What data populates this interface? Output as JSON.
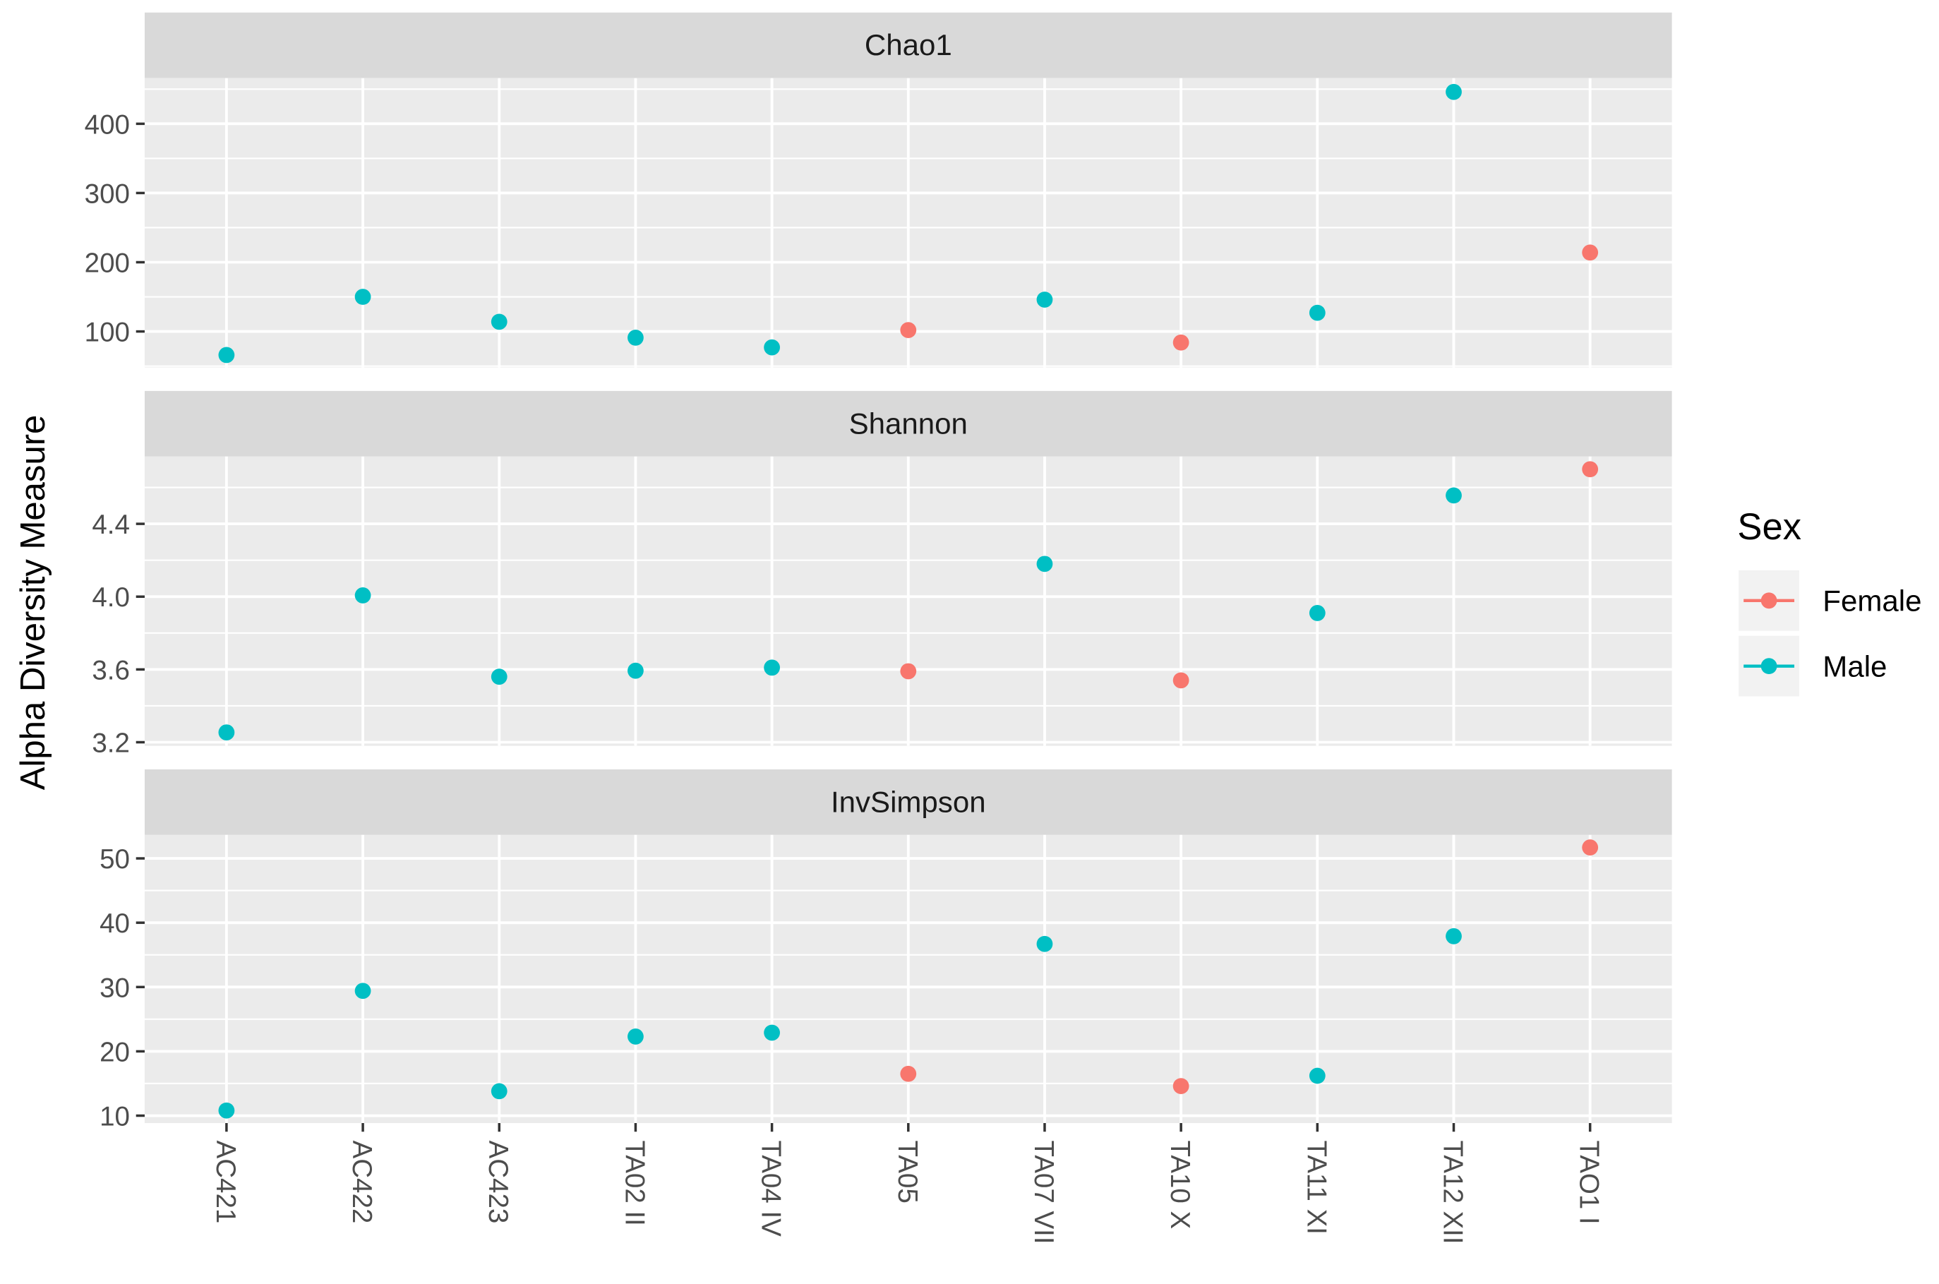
{
  "chart_data": {
    "type": "scatter",
    "ylabel": "Alpha Diversity Measure",
    "categories": [
      "AC421",
      "AC422",
      "AC423",
      "TA02 II",
      "TA04 IV",
      "TA05",
      "TA07 VII",
      "TA10 X",
      "TA11 XI",
      "TA12 XII",
      "TAO1 I"
    ],
    "legend_title": "Sex",
    "series": [
      {
        "name": "Female",
        "color": "#F8766D"
      },
      {
        "name": "Male",
        "color": "#00BFC4"
      }
    ],
    "grid": true,
    "facets": [
      {
        "title": "Chao1",
        "ylim": [
          48,
          466
        ],
        "yticks": [
          100,
          200,
          300,
          400
        ],
        "series": [
          {
            "values": [
              null,
              null,
              null,
              null,
              null,
              102,
              null,
              84,
              null,
              null,
              214
            ]
          },
          {
            "values": [
              66,
              150,
              114,
              91,
              77,
              null,
              146,
              null,
              127,
              446,
              null
            ]
          }
        ]
      },
      {
        "title": "Shannon",
        "ylim": [
          3.18,
          4.77
        ],
        "yticks": [
          3.2,
          3.6,
          {
            "value": 4,
            "label": "4.0"
          },
          4.4
        ],
        "series": [
          {
            "values": [
              null,
              null,
              null,
              null,
              null,
              3.59,
              null,
              3.54,
              null,
              null,
              4.7
            ]
          },
          {
            "values": [
              3.254,
              4.007,
              3.56,
              3.593,
              3.61,
              null,
              4.18,
              null,
              3.91,
              4.556,
              null
            ]
          }
        ]
      },
      {
        "title": "InvSimpson",
        "ylim": [
          8.85,
          53.65
        ],
        "yticks": [
          10,
          20,
          30,
          40,
          50
        ],
        "series": [
          {
            "values": [
              null,
              null,
              null,
              null,
              null,
              16.5,
              null,
              14.6,
              null,
              null,
              51.7
            ]
          },
          {
            "values": [
              10.8,
              29.4,
              13.8,
              22.3,
              22.9,
              null,
              36.7,
              null,
              16.2,
              37.9,
              null
            ]
          }
        ]
      }
    ]
  }
}
